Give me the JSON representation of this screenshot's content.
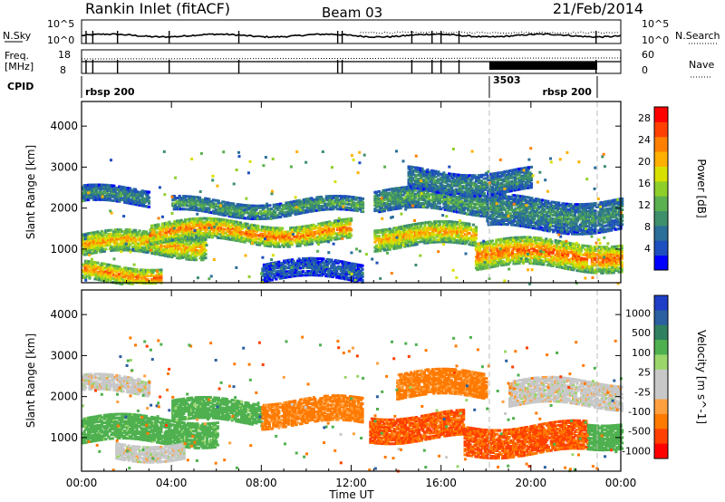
{
  "header": {
    "station": "Rankin Inlet (fitACF)",
    "beam": "Beam 03",
    "date": "21/Feb/2014"
  },
  "top_panels": {
    "nsky_label": "N.Sky",
    "nsearch_label": "N.Search",
    "freq_label": "Freq.",
    "freq_unit": "[MHz]",
    "nave_label": "Nave",
    "cpid_label": "CPID",
    "nsky_ticks": [
      "10^5",
      "10^0"
    ],
    "freq_ticks": [
      "18",
      "8"
    ],
    "nave_ticks": [
      "60",
      "0"
    ],
    "cpid_segments": [
      {
        "start_hour": 0.0,
        "end_hour": 18.15,
        "text": "rbsp 200",
        "align": "left"
      },
      {
        "start_hour": 18.15,
        "end_hour": 22.95,
        "text": "3503",
        "align": "left"
      },
      {
        "start_hour": 18.15,
        "end_hour": 22.95,
        "text": "rbsp 200",
        "align": "right"
      }
    ]
  },
  "colors": {
    "power_scale": [
      "#0000ff",
      "#1e4fbf",
      "#2a6e9a",
      "#3e8f6c",
      "#5bb04f",
      "#8fcf2a",
      "#d8e000",
      "#ffb000",
      "#ff8000",
      "#ff4000",
      "#ff0000"
    ],
    "velocity_scale": [
      "#ff0000",
      "#ff4000",
      "#ff7a00",
      "#ffa040",
      "#c8c8c8",
      "#c8c8c8",
      "#9ad66a",
      "#4fb04f",
      "#2f8060",
      "#2a5fa0",
      "#1e3ec8"
    ]
  },
  "chart_data": [
    {
      "type": "heatmap",
      "title": "",
      "xlabel": "Time UT",
      "ylabel": "Slant Range [km]",
      "xlim": [
        0,
        24
      ],
      "ylim": [
        180,
        4600
      ],
      "x_ticks": [
        "00:00",
        "04:00",
        "08:00",
        "12:00",
        "16:00",
        "20:00",
        "00:00"
      ],
      "x_tick_hours": [
        0,
        4,
        8,
        12,
        16,
        20,
        24
      ],
      "y_ticks": [
        1000,
        2000,
        3000,
        4000
      ],
      "colorbar": {
        "label": "Power [dB]",
        "range": [
          0,
          30
        ],
        "ticks": [
          4,
          8,
          12,
          16,
          20,
          24,
          28
        ]
      },
      "bands": [
        {
          "t0": 0.0,
          "t1": 5.5,
          "r_center": 1150,
          "r_half": 260,
          "value": 22
        },
        {
          "t0": 0.0,
          "t1": 3.0,
          "r_center": 2300,
          "r_half": 180,
          "value": 10
        },
        {
          "t0": 0.0,
          "t1": 3.5,
          "r_center": 450,
          "r_half": 220,
          "value": 24
        },
        {
          "t0": 3.0,
          "t1": 12.0,
          "r_center": 1450,
          "r_half": 240,
          "value": 24
        },
        {
          "t0": 4.0,
          "t1": 12.5,
          "r_center": 2050,
          "r_half": 160,
          "value": 12
        },
        {
          "t0": 8.0,
          "t1": 12.5,
          "r_center": 500,
          "r_half": 220,
          "value": 6
        },
        {
          "t0": 13.0,
          "t1": 17.5,
          "r_center": 1350,
          "r_half": 260,
          "value": 22
        },
        {
          "t0": 13.0,
          "t1": 18.0,
          "r_center": 2200,
          "r_half": 260,
          "value": 12
        },
        {
          "t0": 14.5,
          "t1": 20.0,
          "r_center": 2700,
          "r_half": 250,
          "value": 10
        },
        {
          "t0": 17.5,
          "t1": 24.0,
          "r_center": 900,
          "r_half": 330,
          "value": 25
        },
        {
          "t0": 18.0,
          "t1": 24.0,
          "r_center": 1900,
          "r_half": 380,
          "value": 10
        }
      ]
    },
    {
      "type": "heatmap",
      "title": "",
      "xlabel": "Time UT",
      "ylabel": "Slant Range [km]",
      "xlim": [
        0,
        24
      ],
      "ylim": [
        180,
        4600
      ],
      "x_ticks": [
        "00:00",
        "04:00",
        "08:00",
        "12:00",
        "16:00",
        "20:00",
        "00:00"
      ],
      "x_tick_hours": [
        0,
        4,
        8,
        12,
        16,
        20,
        24
      ],
      "y_ticks": [
        1000,
        2000,
        3000,
        4000
      ],
      "colorbar": {
        "label": "Velocity [m s^-1]",
        "range": [
          -1200,
          1200
        ],
        "ticks": [
          1000,
          500,
          100,
          25,
          -25,
          -100,
          -500,
          -1000
        ]
      },
      "bands": [
        {
          "t0": 0.0,
          "t1": 6.0,
          "r_center": 1200,
          "r_half": 300,
          "value": 200
        },
        {
          "t0": 0.0,
          "t1": 3.0,
          "r_center": 2300,
          "r_half": 200,
          "value": 0
        },
        {
          "t0": 1.5,
          "t1": 4.5,
          "r_center": 750,
          "r_half": 200,
          "value": 0
        },
        {
          "t0": 4.0,
          "t1": 8.0,
          "r_center": 1650,
          "r_half": 250,
          "value": 200
        },
        {
          "t0": 8.0,
          "t1": 12.5,
          "r_center": 1650,
          "r_half": 300,
          "value": -150
        },
        {
          "t0": 12.8,
          "t1": 17.0,
          "r_center": 1300,
          "r_half": 300,
          "value": -550
        },
        {
          "t0": 14.0,
          "t1": 18.0,
          "r_center": 2300,
          "r_half": 300,
          "value": -150
        },
        {
          "t0": 17.0,
          "t1": 22.5,
          "r_center": 1000,
          "r_half": 350,
          "value": -550
        },
        {
          "t0": 19.0,
          "t1": 24.0,
          "r_center": 2100,
          "r_half": 300,
          "value": 0
        },
        {
          "t0": 22.5,
          "t1": 24.0,
          "r_center": 1150,
          "r_half": 300,
          "value": 300
        }
      ]
    }
  ]
}
